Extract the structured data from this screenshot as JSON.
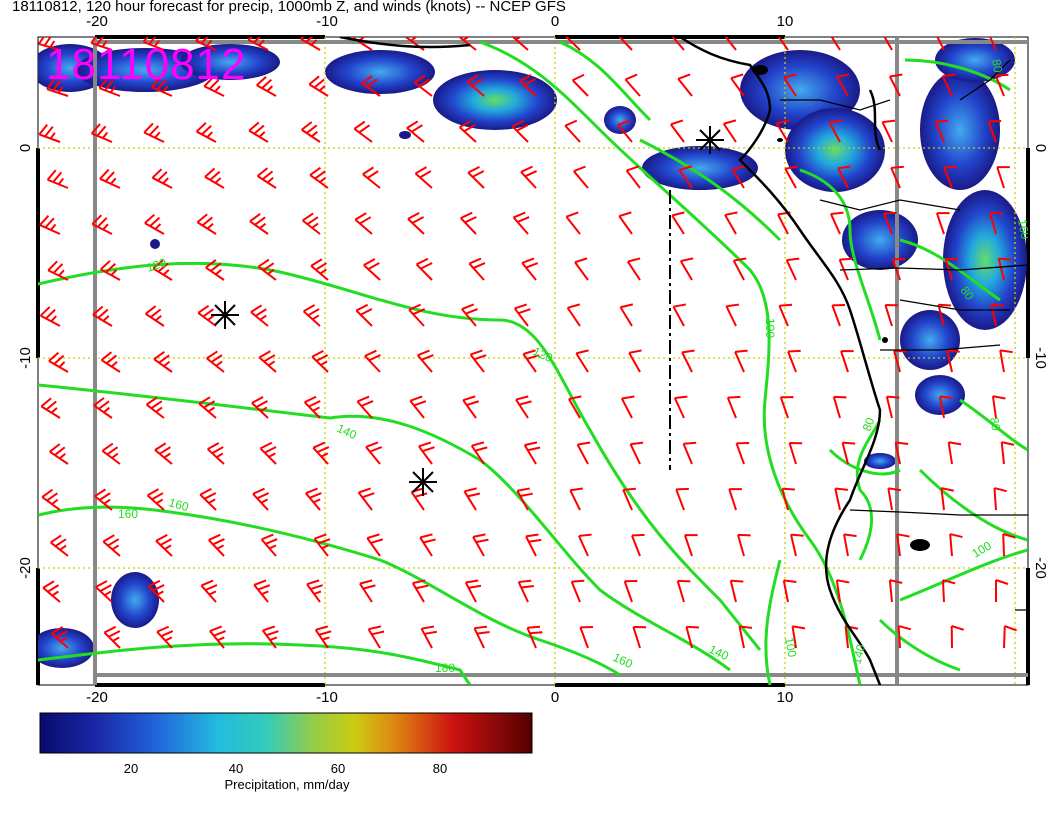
{
  "title": "18110812, 120 hour forecast for precip, 1000mb Z, and winds (knots) -- NCEP GFS",
  "date_stamp": "18110812",
  "map": {
    "lon_ticks": [
      "-20",
      "-10",
      "0",
      "10"
    ],
    "lat_ticks": [
      "0",
      "-10",
      "-20"
    ],
    "contour_labels": [
      "120",
      "120",
      "140",
      "140",
      "160",
      "160",
      "160",
      "180",
      "100",
      "80",
      "80",
      "80",
      "80",
      "100",
      "100",
      "140",
      "160"
    ],
    "colors": {
      "wind_barb": "#ff0000",
      "height_contour": "#22dd22",
      "grid": "#cccc00",
      "coast": "#000000"
    }
  },
  "colorbar": {
    "label": "Precipitation, mm/day",
    "ticks": [
      "20",
      "40",
      "60",
      "80"
    ]
  }
}
